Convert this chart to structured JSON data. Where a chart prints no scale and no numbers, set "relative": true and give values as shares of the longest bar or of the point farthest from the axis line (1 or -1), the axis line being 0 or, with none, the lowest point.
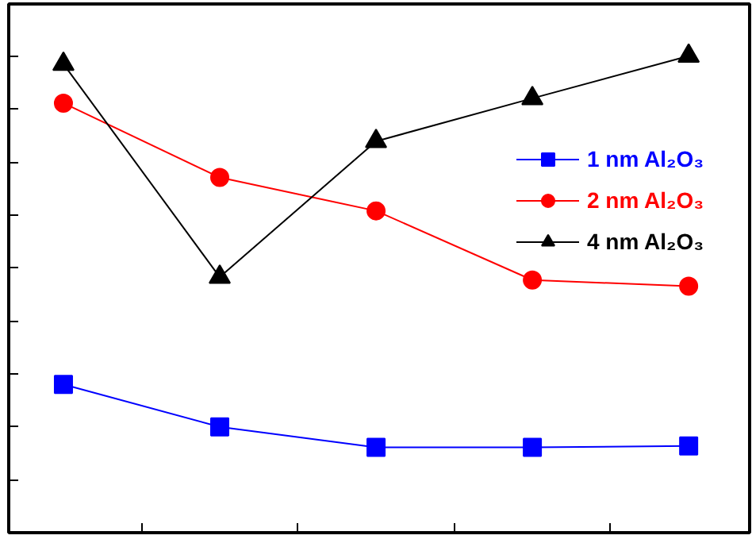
{
  "chart_data": {
    "type": "line",
    "relative": true,
    "categories": [
      null,
      null,
      null,
      null,
      null
    ],
    "tick_labels": false,
    "grid": false,
    "legend": "right",
    "line_style": "solid",
    "series": [
      {
        "name": "1 nm Al₂O₃",
        "color": "#0000ff",
        "marker": "square",
        "values": [
          0.311,
          0.222,
          0.179,
          0.179,
          0.182
        ]
      },
      {
        "name": "2 nm Al₂O₃",
        "color": "#ff0000",
        "marker": "circle",
        "values": [
          0.901,
          0.745,
          0.675,
          0.53,
          0.517
        ]
      },
      {
        "name": "4 nm Al₂O₃",
        "color": "#000000",
        "marker": "triangle",
        "values": [
          0.983,
          0.536,
          0.821,
          0.911,
          1.0
        ]
      }
    ]
  }
}
